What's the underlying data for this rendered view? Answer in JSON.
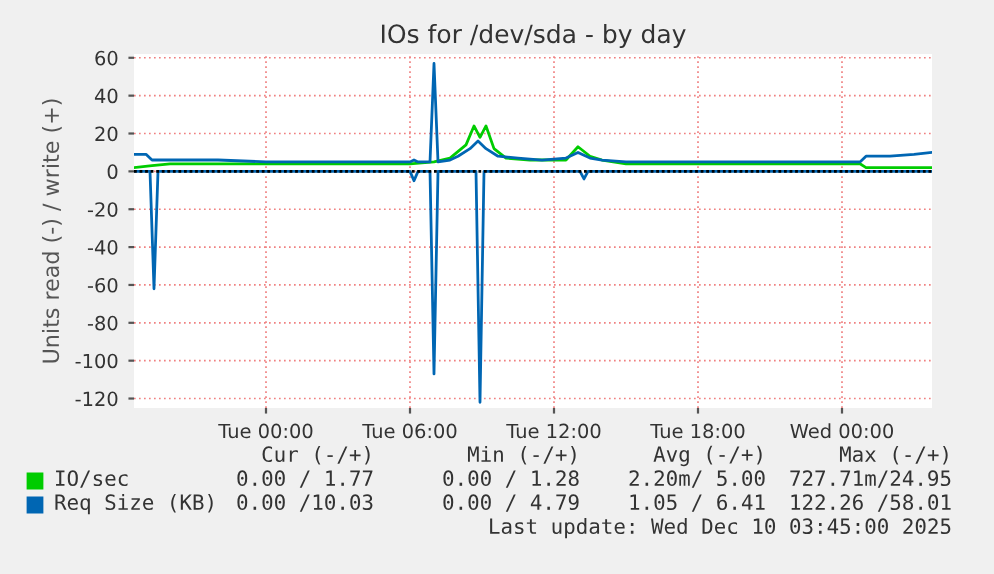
{
  "chart_data": {
    "type": "line",
    "title": "IOs for /dev/sda - by day",
    "ylabel": "Units read (-) / write (+)",
    "xlim": [
      "2025-12-08T18:30",
      "2025-12-10T03:45"
    ],
    "xticks": [
      {
        "value": "2025-12-09T00:00",
        "label": "Tue 00:00"
      },
      {
        "value": "2025-12-09T06:00",
        "label": "Tue 06:00"
      },
      {
        "value": "2025-12-09T12:00",
        "label": "Tue 12:00"
      },
      {
        "value": "2025-12-09T18:00",
        "label": "Tue 18:00"
      },
      {
        "value": "2025-12-10T00:00",
        "label": "Wed 00:00"
      }
    ],
    "ylim": [
      -125,
      62
    ],
    "yticks": [
      -120,
      -100,
      -80,
      -60,
      -40,
      -20,
      0,
      20,
      40,
      60
    ],
    "grid": true,
    "legend": "bottom",
    "ref_lines": [
      {
        "axis": "y",
        "value": 0,
        "color": "#000000"
      }
    ],
    "series": [
      {
        "name": "IO/sec",
        "color": "#00cc00",
        "x": [
          "2025-12-08T18:30",
          "2025-12-08T19:15",
          "2025-12-08T20:00",
          "2025-12-08T22:00",
          "2025-12-09T00:00",
          "2025-12-09T03:00",
          "2025-12-09T06:00",
          "2025-12-09T07:00",
          "2025-12-09T07:40",
          "2025-12-09T08:20",
          "2025-12-09T08:40",
          "2025-12-09T08:55",
          "2025-12-09T09:10",
          "2025-12-09T09:30",
          "2025-12-09T10:00",
          "2025-12-09T11:00",
          "2025-12-09T12:30",
          "2025-12-09T13:00",
          "2025-12-09T13:30",
          "2025-12-09T14:00",
          "2025-12-09T15:00",
          "2025-12-09T18:00",
          "2025-12-09T21:00",
          "2025-12-10T00:00",
          "2025-12-10T00:45",
          "2025-12-10T01:00",
          "2025-12-10T03:45"
        ],
        "values": [
          2,
          3,
          4,
          4,
          4,
          4,
          4,
          5,
          7,
          14,
          24,
          18,
          24,
          12,
          7,
          6,
          6,
          13,
          8,
          6,
          4,
          4,
          4,
          4,
          4,
          2,
          2
        ]
      },
      {
        "name": "Req Size (KB)",
        "color": "#0066b3",
        "x": [
          "2025-12-08T18:30",
          "2025-12-08T19:00",
          "2025-12-08T19:15",
          "2025-12-08T20:00",
          "2025-12-08T22:00",
          "2025-12-09T00:00",
          "2025-12-09T02:00",
          "2025-12-09T04:00",
          "2025-12-09T06:00",
          "2025-12-09T06:10",
          "2025-12-09T06:20",
          "2025-12-09T06:50",
          "2025-12-09T07:00",
          "2025-12-09T07:10",
          "2025-12-09T07:40",
          "2025-12-09T08:00",
          "2025-12-09T08:30",
          "2025-12-09T08:50",
          "2025-12-09T09:10",
          "2025-12-09T09:40",
          "2025-12-09T10:30",
          "2025-12-09T11:30",
          "2025-12-09T12:30",
          "2025-12-09T13:00",
          "2025-12-09T13:30",
          "2025-12-09T14:00",
          "2025-12-09T15:00",
          "2025-12-09T18:00",
          "2025-12-09T21:00",
          "2025-12-10T00:00",
          "2025-12-10T00:45",
          "2025-12-10T01:00",
          "2025-12-10T02:00",
          "2025-12-10T03:00",
          "2025-12-10T03:45"
        ],
        "values": [
          9,
          9,
          6,
          6,
          6,
          5,
          5,
          5,
          5,
          6,
          5,
          5,
          57,
          5,
          6,
          8,
          12,
          16,
          12,
          8,
          7,
          6,
          7,
          10,
          7,
          6,
          5,
          5,
          5,
          5,
          5,
          8,
          8,
          9,
          10
        ]
      },
      {
        "color": "#0066b3",
        "x": [
          "2025-12-08T18:30",
          "2025-12-08T19:10",
          "2025-12-08T19:20",
          "2025-12-08T19:30",
          "2025-12-09T06:00",
          "2025-12-09T06:10",
          "2025-12-09T06:20",
          "2025-12-09T06:50",
          "2025-12-09T07:00",
          "2025-12-09T07:10",
          "2025-12-09T08:45",
          "2025-12-09T08:55",
          "2025-12-09T09:05",
          "2025-12-09T13:05",
          "2025-12-09T13:15",
          "2025-12-09T13:25",
          "2025-12-10T03:45"
        ],
        "values": [
          0,
          0,
          -62,
          0,
          0,
          -5,
          0,
          0,
          -107,
          0,
          0,
          -122,
          0,
          0,
          -4,
          0,
          0
        ]
      }
    ],
    "annotations": [
      "Cur (-/+)",
      "Min (-/+)",
      "Avg (-/+)",
      "Max (-/+)",
      "0.00 / 1.77",
      "0.00 / 1.28",
      "2.20m/ 5.00",
      "727.71m/24.95",
      "0.00 /10.03",
      "0.00 / 4.79",
      "1.05 / 6.41",
      "122.26 /58.01",
      "Last update: Wed Dec 10 03:45:00 2025"
    ]
  }
}
